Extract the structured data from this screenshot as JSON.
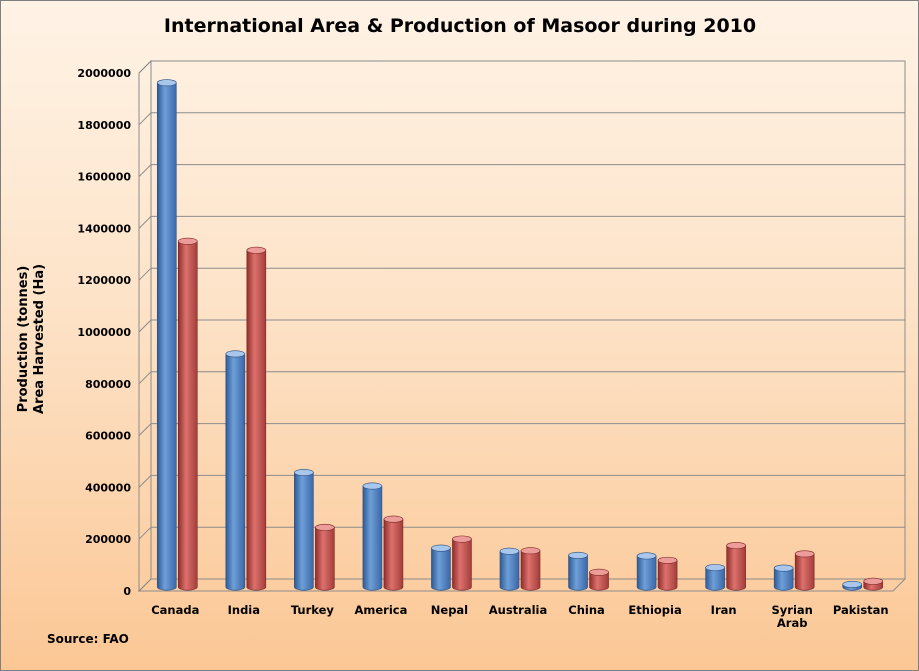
{
  "chart_data": {
    "type": "bar",
    "title": "International Area & Production of Masoor during 2010",
    "ylabel_lines": [
      "Production (tonnes)",
      "Area Harvested (Ha)"
    ],
    "xlabel": "",
    "ylim": [
      0,
      2000000
    ],
    "yticks": [
      0,
      200000,
      400000,
      600000,
      800000,
      1000000,
      1200000,
      1400000,
      1600000,
      1800000,
      2000000
    ],
    "ytick_labels": [
      "0",
      "200000",
      "400000",
      "600000",
      "800000",
      "1000000",
      "1200000",
      "1400000",
      "1600000",
      "1800000",
      "2000000"
    ],
    "categories": [
      "Canada",
      "India",
      "Turkey",
      "America",
      "Nepal",
      "Australia",
      "China",
      "Ethiopia",
      "Iran",
      "Syrian Arab",
      "Pakistan"
    ],
    "category_label_lines": [
      [
        "Canada"
      ],
      [
        "India"
      ],
      [
        "Turkey"
      ],
      [
        "America"
      ],
      [
        "Nepal"
      ],
      [
        "Australia"
      ],
      [
        "China"
      ],
      [
        "Ethiopia"
      ],
      [
        "Iran"
      ],
      [
        "Syrian",
        "Arab"
      ],
      [
        "Pakistan"
      ]
    ],
    "series": [
      {
        "color": "#4f81bd",
        "values": [
          1947000,
          900000,
          442000,
          390000,
          150000,
          138000,
          122000,
          120000,
          75000,
          73000,
          10000
        ]
      },
      {
        "color": "#c0504d",
        "values": [
          1335000,
          1300000,
          230000,
          262000,
          185000,
          140000,
          57000,
          103000,
          160000,
          128000,
          22000
        ]
      }
    ],
    "grid": true,
    "legend": "none",
    "source": "Source: FAO"
  }
}
